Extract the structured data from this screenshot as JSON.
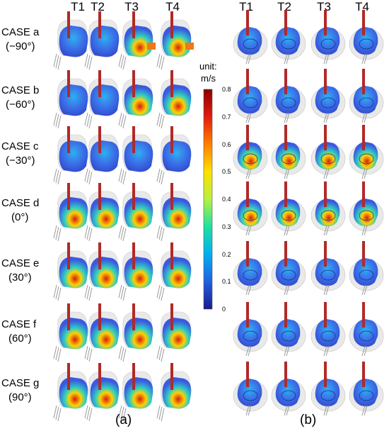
{
  "column_headers_a": [
    "T1",
    "T2",
    "T3",
    "T4"
  ],
  "column_headers_b": [
    "T1",
    "T2",
    "T3",
    "T4"
  ],
  "cases": [
    {
      "name": "CASE a",
      "angle": "(−90°)"
    },
    {
      "name": "CASE b",
      "angle": "(−60°)"
    },
    {
      "name": "CASE c",
      "angle": "(−30°)"
    },
    {
      "name": "CASE d",
      "angle": "(0°)"
    },
    {
      "name": "CASE e",
      "angle": "(30°)"
    },
    {
      "name": "CASE f",
      "angle": "(60°)"
    },
    {
      "name": "CASE g",
      "angle": "(90°)"
    }
  ],
  "colorbar": {
    "unit_label": "unit:",
    "unit": "m/s",
    "ticks": [
      "0.8",
      "0.7",
      "0.6",
      "0.5",
      "0.4",
      "0.3",
      "0.2",
      "0.1",
      "0"
    ],
    "colors": [
      "#8b0000",
      "#e21d10",
      "#ff8000",
      "#ffe000",
      "#b8f040",
      "#20e0a0",
      "#00b0f0",
      "#2060e0",
      "#1a1a8c"
    ]
  },
  "panel_labels": {
    "a": "(a)",
    "b": "(b)"
  }
}
